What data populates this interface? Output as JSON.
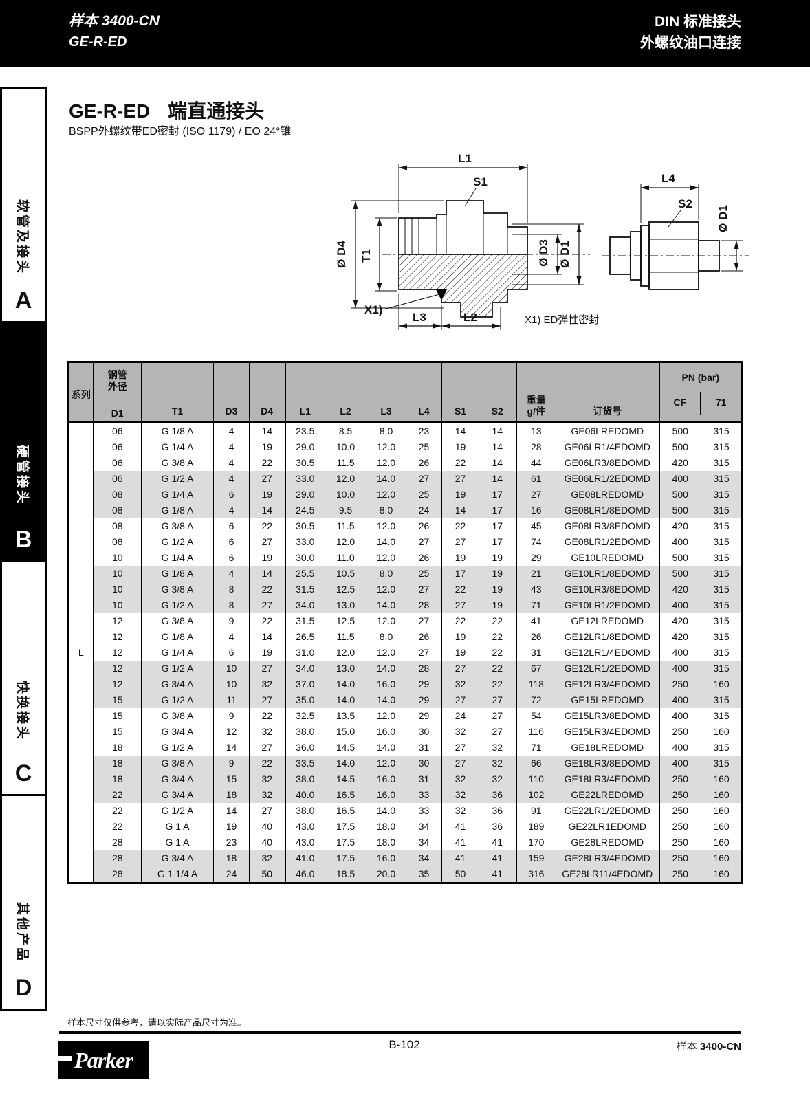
{
  "page_header": {
    "catalog_label": "样本 3400-CN",
    "series_label": "GE-R-ED",
    "right_line1": "DIN 标准接头",
    "right_line2": "外螺纹油口连接"
  },
  "sidebar": {
    "sections": [
      {
        "label": "软管及接头",
        "letter": "A"
      },
      {
        "label": "硬管接头",
        "letter": "B"
      },
      {
        "label": "快换接头",
        "letter": "C"
      },
      {
        "label": "其他产品",
        "letter": "D"
      }
    ]
  },
  "title": {
    "code": "GE-R-ED",
    "name": "端直通接头",
    "subtitle": "BSPP外螺纹带ED密封 (ISO 1179) / EO 24°锥"
  },
  "drawing": {
    "dim_l1": "L1",
    "dim_s1": "S1",
    "dim_d4": "Ø D4",
    "dim_t1": "T1",
    "dim_d3": "Ø D3",
    "dim_d1": "Ø D1",
    "dim_x1": "X1)",
    "dim_l3": "L3",
    "dim_l2": "L2",
    "dim_l4": "L4",
    "dim_s2": "S2",
    "dim_d1_right": "Ø D1",
    "note": "X1) ED弹性密封"
  },
  "table": {
    "series_header": "系列",
    "series_value": "L",
    "tube_od_header": "钢管\n外径",
    "columns": [
      "D1",
      "T1",
      "D3",
      "D4",
      "L1",
      "L2",
      "L3",
      "L4",
      "S1",
      "S2"
    ],
    "weight_header": "重量",
    "weight_unit": "g/件",
    "order_header": "订货号",
    "pn_header": "PN (bar)",
    "cf_header": "CF",
    "col71_header": "71",
    "rows": [
      [
        "06",
        "G 1/8 A",
        "4",
        "14",
        "23.5",
        "8.5",
        "8.0",
        "23",
        "14",
        "14",
        "13",
        "GE06LREDOMD",
        "500",
        "315"
      ],
      [
        "06",
        "G 1/4 A",
        "4",
        "19",
        "29.0",
        "10.0",
        "12.0",
        "25",
        "19",
        "14",
        "28",
        "GE06LR1/4EDOMD",
        "500",
        "315"
      ],
      [
        "06",
        "G 3/8 A",
        "4",
        "22",
        "30.5",
        "11.5",
        "12.0",
        "26",
        "22",
        "14",
        "44",
        "GE06LR3/8EDOMD",
        "420",
        "315"
      ],
      [
        "06",
        "G 1/2 A",
        "4",
        "27",
        "33.0",
        "12.0",
        "14.0",
        "27",
        "27",
        "14",
        "61",
        "GE06LR1/2EDOMD",
        "400",
        "315"
      ],
      [
        "08",
        "G 1/4 A",
        "6",
        "19",
        "29.0",
        "10.0",
        "12.0",
        "25",
        "19",
        "17",
        "27",
        "GE08LREDOMD",
        "500",
        "315"
      ],
      [
        "08",
        "G 1/8 A",
        "4",
        "14",
        "24.5",
        "9.5",
        "8.0",
        "24",
        "14",
        "17",
        "16",
        "GE08LR1/8EDOMD",
        "500",
        "315"
      ],
      [
        "08",
        "G 3/8 A",
        "6",
        "22",
        "30.5",
        "11.5",
        "12.0",
        "26",
        "22",
        "17",
        "45",
        "GE08LR3/8EDOMD",
        "420",
        "315"
      ],
      [
        "08",
        "G 1/2 A",
        "6",
        "27",
        "33.0",
        "12.0",
        "14.0",
        "27",
        "27",
        "17",
        "74",
        "GE08LR1/2EDOMD",
        "400",
        "315"
      ],
      [
        "10",
        "G 1/4 A",
        "6",
        "19",
        "30.0",
        "11.0",
        "12.0",
        "26",
        "19",
        "19",
        "29",
        "GE10LREDOMD",
        "500",
        "315"
      ],
      [
        "10",
        "G 1/8 A",
        "4",
        "14",
        "25.5",
        "10.5",
        "8.0",
        "25",
        "17",
        "19",
        "21",
        "GE10LR1/8EDOMD",
        "500",
        "315"
      ],
      [
        "10",
        "G 3/8 A",
        "8",
        "22",
        "31.5",
        "12.5",
        "12.0",
        "27",
        "22",
        "19",
        "43",
        "GE10LR3/8EDOMD",
        "420",
        "315"
      ],
      [
        "10",
        "G 1/2 A",
        "8",
        "27",
        "34.0",
        "13.0",
        "14.0",
        "28",
        "27",
        "19",
        "71",
        "GE10LR1/2EDOMD",
        "400",
        "315"
      ],
      [
        "12",
        "G 3/8 A",
        "9",
        "22",
        "31.5",
        "12.5",
        "12.0",
        "27",
        "22",
        "22",
        "41",
        "GE12LREDOMD",
        "420",
        "315"
      ],
      [
        "12",
        "G 1/8 A",
        "4",
        "14",
        "26.5",
        "11.5",
        "8.0",
        "26",
        "19",
        "22",
        "26",
        "GE12LR1/8EDOMD",
        "420",
        "315"
      ],
      [
        "12",
        "G 1/4 A",
        "6",
        "19",
        "31.0",
        "12.0",
        "12.0",
        "27",
        "19",
        "22",
        "31",
        "GE12LR1/4EDOMD",
        "400",
        "315"
      ],
      [
        "12",
        "G 1/2 A",
        "10",
        "27",
        "34.0",
        "13.0",
        "14.0",
        "28",
        "27",
        "22",
        "67",
        "GE12LR1/2EDOMD",
        "400",
        "315"
      ],
      [
        "12",
        "G 3/4 A",
        "10",
        "32",
        "37.0",
        "14.0",
        "16.0",
        "29",
        "32",
        "22",
        "118",
        "GE12LR3/4EDOMD",
        "250",
        "160"
      ],
      [
        "15",
        "G 1/2 A",
        "11",
        "27",
        "35.0",
        "14.0",
        "14.0",
        "29",
        "27",
        "27",
        "72",
        "GE15LREDOMD",
        "400",
        "315"
      ],
      [
        "15",
        "G 3/8 A",
        "9",
        "22",
        "32.5",
        "13.5",
        "12.0",
        "29",
        "24",
        "27",
        "54",
        "GE15LR3/8EDOMD",
        "400",
        "315"
      ],
      [
        "15",
        "G 3/4 A",
        "12",
        "32",
        "38.0",
        "15.0",
        "16.0",
        "30",
        "32",
        "27",
        "116",
        "GE15LR3/4EDOMD",
        "250",
        "160"
      ],
      [
        "18",
        "G 1/2 A",
        "14",
        "27",
        "36.0",
        "14.5",
        "14.0",
        "31",
        "27",
        "32",
        "71",
        "GE18LREDOMD",
        "400",
        "315"
      ],
      [
        "18",
        "G 3/8 A",
        "9",
        "22",
        "33.5",
        "14.0",
        "12.0",
        "30",
        "27",
        "32",
        "66",
        "GE18LR3/8EDOMD",
        "400",
        "315"
      ],
      [
        "18",
        "G 3/4 A",
        "15",
        "32",
        "38.0",
        "14.5",
        "16.0",
        "31",
        "32",
        "32",
        "110",
        "GE18LR3/4EDOMD",
        "250",
        "160"
      ],
      [
        "22",
        "G 3/4 A",
        "18",
        "32",
        "40.0",
        "16.5",
        "16.0",
        "33",
        "32",
        "36",
        "102",
        "GE22LREDOMD",
        "250",
        "160"
      ],
      [
        "22",
        "G 1/2 A",
        "14",
        "27",
        "38.0",
        "16.5",
        "14.0",
        "33",
        "32",
        "36",
        "91",
        "GE22LR1/2EDOMD",
        "250",
        "160"
      ],
      [
        "22",
        "G 1 A",
        "19",
        "40",
        "43.0",
        "17.5",
        "18.0",
        "34",
        "41",
        "36",
        "189",
        "GE22LR1EDOMD",
        "250",
        "160"
      ],
      [
        "28",
        "G 1 A",
        "23",
        "40",
        "43.0",
        "17.5",
        "18.0",
        "34",
        "41",
        "41",
        "170",
        "GE28LREDOMD",
        "250",
        "160"
      ],
      [
        "28",
        "G 3/4 A",
        "18",
        "32",
        "41.0",
        "17.5",
        "16.0",
        "34",
        "41",
        "41",
        "159",
        "GE28LR3/4EDOMD",
        "250",
        "160"
      ],
      [
        "28",
        "G 1 1/4 A",
        "24",
        "50",
        "46.0",
        "18.5",
        "20.0",
        "35",
        "50",
        "41",
        "316",
        "GE28LR11/4EDOMD",
        "250",
        "160"
      ]
    ]
  },
  "footer": {
    "note": "样本尺寸仅供参考，请以实际产品尺寸为准。",
    "page_number": "B-102",
    "catalog_plain": "样本 ",
    "catalog_bold": "3400-CN",
    "logo": "Parker"
  }
}
